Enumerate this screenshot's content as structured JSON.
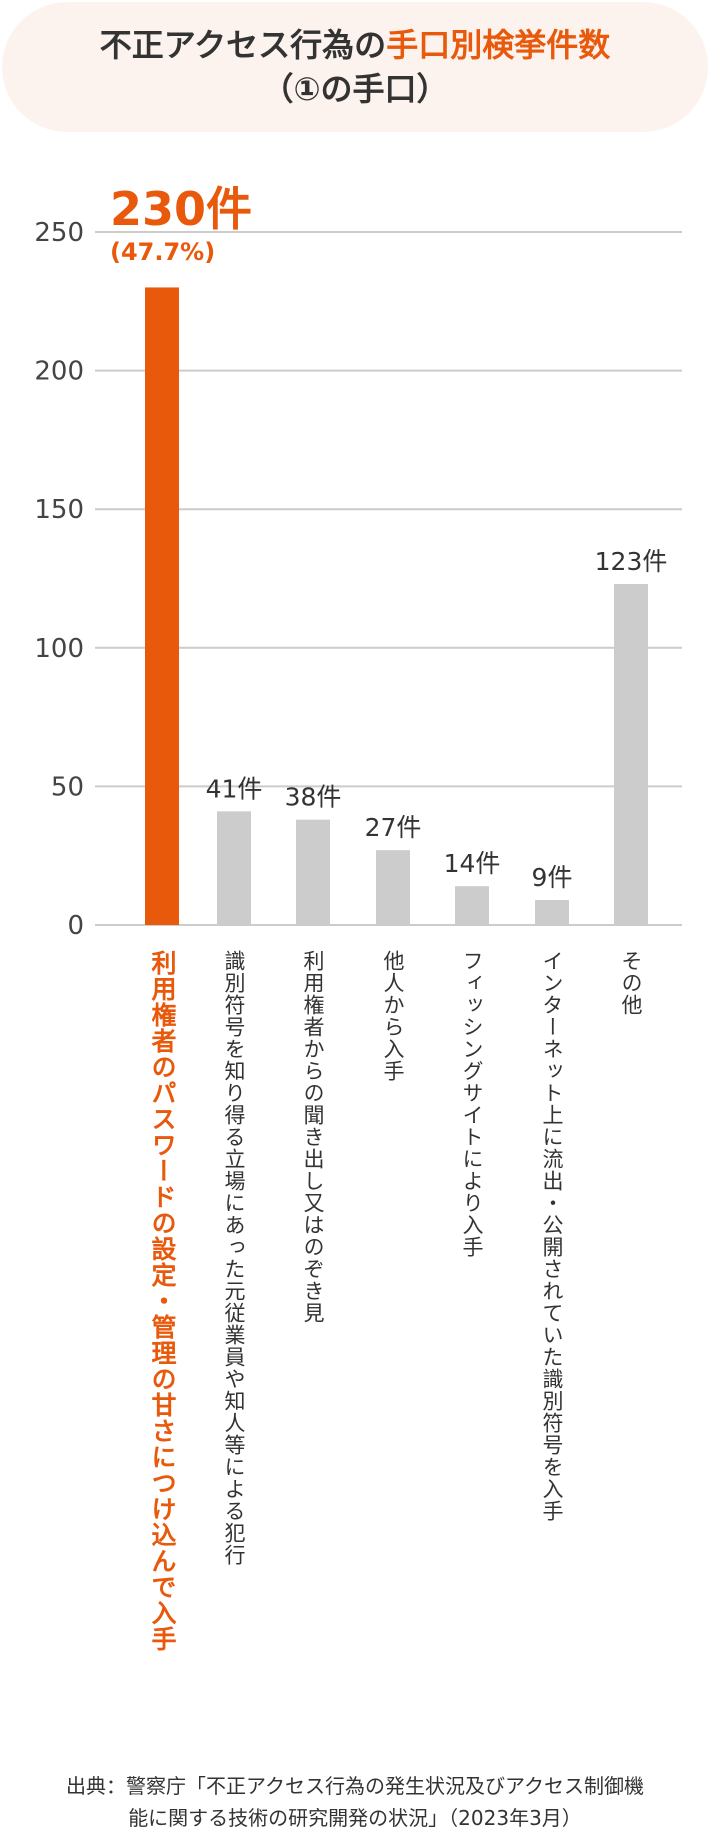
{
  "title": {
    "line1_prefix": "不正アクセス行為の",
    "line1_accent": "手口別検挙件数",
    "line2": "（①の手口）"
  },
  "colors": {
    "accent": "#e8590c",
    "bar": "#cccccc",
    "grid": "#cccccc",
    "title_bg": "#fdf3ee"
  },
  "chart_data": {
    "type": "bar",
    "categories": [
      "利用権者のパスワードの設定・管理の甘さにつけ込んで入手",
      "識別符号を知り得る立場にあった元従業員や知人等による犯行",
      "利用権者からの聞き出し又はのぞき見",
      "他人から入手",
      "フィッシングサイトにより入手",
      "インターネット上に流出・公開されていた識別符号を入手",
      "その他"
    ],
    "values": [
      230,
      41,
      38,
      27,
      14,
      9,
      123
    ],
    "value_labels": [
      "230件",
      "41件",
      "38件",
      "27件",
      "14件",
      "9件",
      "123件"
    ],
    "highlight_index": 0,
    "highlight_percent": "(47.7%)",
    "yticks": [
      0,
      50,
      100,
      150,
      200,
      250
    ],
    "ylim": [
      0,
      250
    ],
    "grid": true
  },
  "source": {
    "line1": "出典：警察庁「不正アクセス行為の発生状況及びアクセス制御機",
    "line2": "能に関する技術の研究開発の状況」（2023年3月）"
  }
}
